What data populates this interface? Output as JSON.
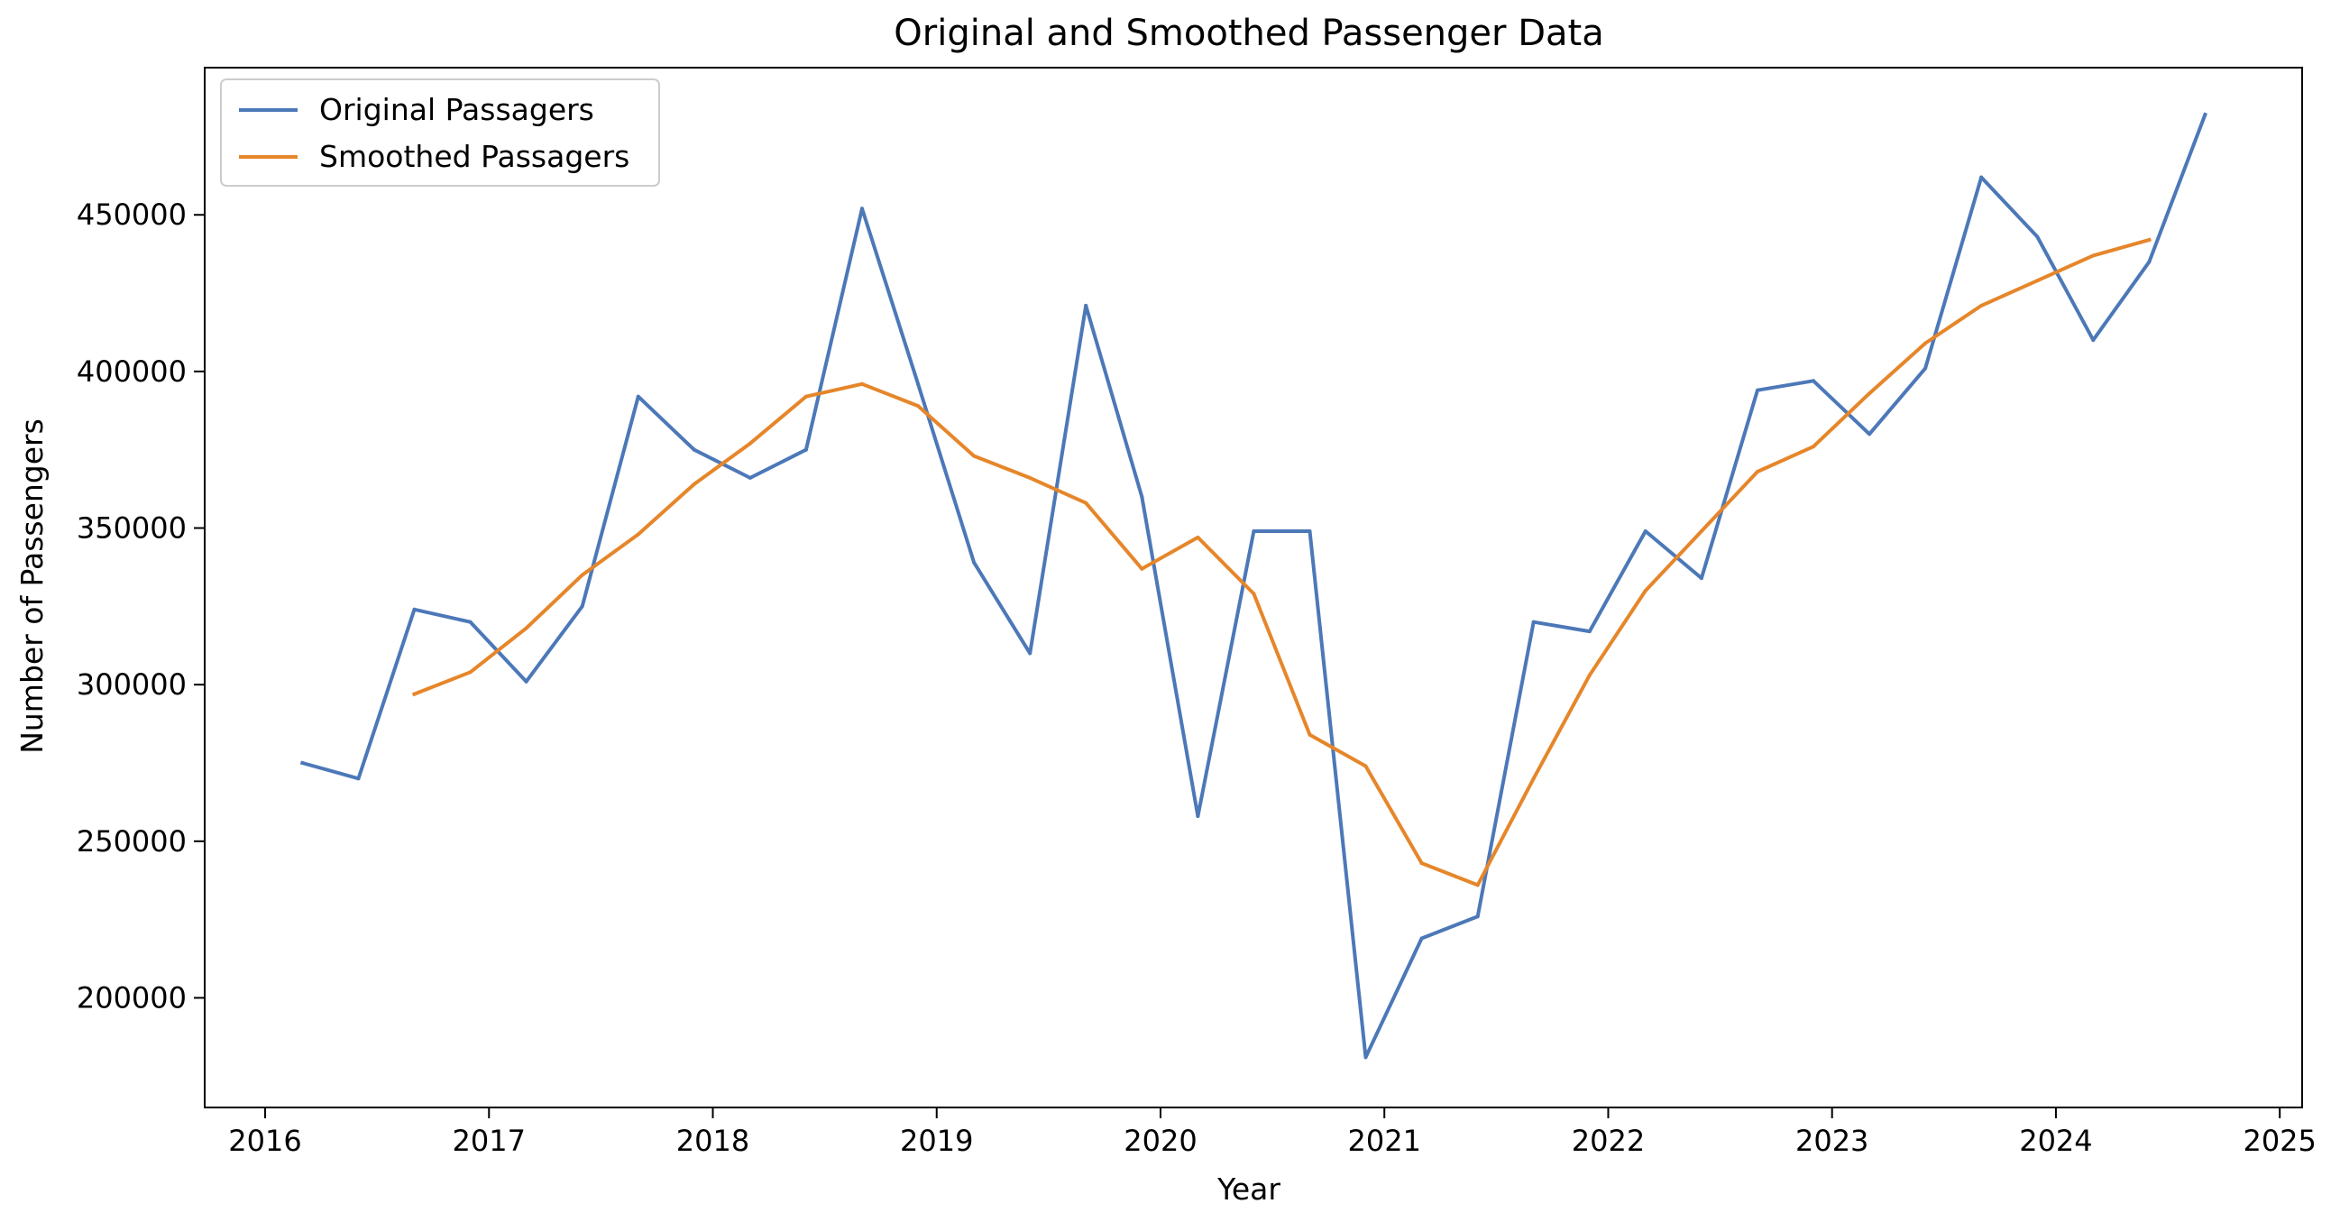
{
  "chart_data": {
    "type": "line",
    "title": "Original and Smoothed Passenger Data",
    "xlabel": "Year",
    "ylabel": "Number of Passengers",
    "xlim": [
      2015.73,
      2025.1
    ],
    "ylim": [
      165000,
      497000
    ],
    "x_ticks": [
      {
        "value": 2016,
        "label": "2016"
      },
      {
        "value": 2017,
        "label": "2017"
      },
      {
        "value": 2018,
        "label": "2018"
      },
      {
        "value": 2019,
        "label": "2019"
      },
      {
        "value": 2020,
        "label": "2020"
      },
      {
        "value": 2021,
        "label": "2021"
      },
      {
        "value": 2022,
        "label": "2022"
      },
      {
        "value": 2023,
        "label": "2023"
      },
      {
        "value": 2024,
        "label": "2024"
      },
      {
        "value": 2025,
        "label": "2025"
      }
    ],
    "y_ticks": [
      {
        "value": 200000,
        "label": "200000"
      },
      {
        "value": 250000,
        "label": "250000"
      },
      {
        "value": 300000,
        "label": "300000"
      },
      {
        "value": 350000,
        "label": "350000"
      },
      {
        "value": 400000,
        "label": "400000"
      },
      {
        "value": 450000,
        "label": "450000"
      }
    ],
    "grid": false,
    "legend_position": "top-left",
    "series": [
      {
        "name": "Original Passagers",
        "color": "#4c78b8",
        "points": [
          {
            "x": "2016-03-01",
            "y": 275000
          },
          {
            "x": "2016-06-01",
            "y": 270000
          },
          {
            "x": "2016-09-01",
            "y": 324000
          },
          {
            "x": "2016-12-01",
            "y": 320000
          },
          {
            "x": "2017-03-01",
            "y": 301000
          },
          {
            "x": "2017-06-01",
            "y": 325000
          },
          {
            "x": "2017-09-01",
            "y": 392000
          },
          {
            "x": "2017-12-01",
            "y": 375000
          },
          {
            "x": "2018-03-01",
            "y": 366000
          },
          {
            "x": "2018-06-01",
            "y": 375000
          },
          {
            "x": "2018-09-01",
            "y": 452000
          },
          {
            "x": "2018-12-01",
            "y": 396000
          },
          {
            "x": "2019-03-01",
            "y": 339000
          },
          {
            "x": "2019-06-01",
            "y": 310000
          },
          {
            "x": "2019-09-01",
            "y": 421000
          },
          {
            "x": "2019-12-01",
            "y": 360000
          },
          {
            "x": "2020-03-01",
            "y": 258000
          },
          {
            "x": "2020-06-01",
            "y": 349000
          },
          {
            "x": "2020-09-01",
            "y": 349000
          },
          {
            "x": "2020-12-01",
            "y": 181000
          },
          {
            "x": "2021-03-01",
            "y": 219000
          },
          {
            "x": "2021-06-01",
            "y": 226000
          },
          {
            "x": "2021-09-01",
            "y": 320000
          },
          {
            "x": "2021-12-01",
            "y": 317000
          },
          {
            "x": "2022-03-01",
            "y": 349000
          },
          {
            "x": "2022-06-01",
            "y": 334000
          },
          {
            "x": "2022-09-01",
            "y": 394000
          },
          {
            "x": "2022-12-01",
            "y": 397000
          },
          {
            "x": "2023-03-01",
            "y": 380000
          },
          {
            "x": "2023-06-01",
            "y": 401000
          },
          {
            "x": "2023-09-01",
            "y": 462000
          },
          {
            "x": "2023-12-01",
            "y": 443000
          },
          {
            "x": "2024-03-01",
            "y": 410000
          },
          {
            "x": "2024-06-01",
            "y": 435000
          },
          {
            "x": "2024-09-01",
            "y": 482000
          }
        ]
      },
      {
        "name": "Smoothed Passagers",
        "color": "#e6862a",
        "points": [
          {
            "x": "2016-09-01",
            "y": 297000
          },
          {
            "x": "2016-12-01",
            "y": 304000
          },
          {
            "x": "2017-03-01",
            "y": 318000
          },
          {
            "x": "2017-06-01",
            "y": 335000
          },
          {
            "x": "2017-09-01",
            "y": 348000
          },
          {
            "x": "2017-12-01",
            "y": 364000
          },
          {
            "x": "2018-03-01",
            "y": 377000
          },
          {
            "x": "2018-06-01",
            "y": 392000
          },
          {
            "x": "2018-09-01",
            "y": 396000
          },
          {
            "x": "2018-12-01",
            "y": 389000
          },
          {
            "x": "2019-03-01",
            "y": 373000
          },
          {
            "x": "2019-06-01",
            "y": 366000
          },
          {
            "x": "2019-09-01",
            "y": 358000
          },
          {
            "x": "2019-12-01",
            "y": 337000
          },
          {
            "x": "2020-03-01",
            "y": 347000
          },
          {
            "x": "2020-06-01",
            "y": 329000
          },
          {
            "x": "2020-09-01",
            "y": 284000
          },
          {
            "x": "2020-12-01",
            "y": 274000
          },
          {
            "x": "2021-03-01",
            "y": 243000
          },
          {
            "x": "2021-06-01",
            "y": 236000
          },
          {
            "x": "2021-09-01",
            "y": 270000
          },
          {
            "x": "2021-12-01",
            "y": 303000
          },
          {
            "x": "2022-03-01",
            "y": 330000
          },
          {
            "x": "2022-06-01",
            "y": 349000
          },
          {
            "x": "2022-09-01",
            "y": 368000
          },
          {
            "x": "2022-12-01",
            "y": 376000
          },
          {
            "x": "2023-03-01",
            "y": 393000
          },
          {
            "x": "2023-06-01",
            "y": 409000
          },
          {
            "x": "2023-09-01",
            "y": 421000
          },
          {
            "x": "2023-12-01",
            "y": 429000
          },
          {
            "x": "2024-03-01",
            "y": 437000
          },
          {
            "x": "2024-06-01",
            "y": 442000
          }
        ]
      }
    ]
  }
}
